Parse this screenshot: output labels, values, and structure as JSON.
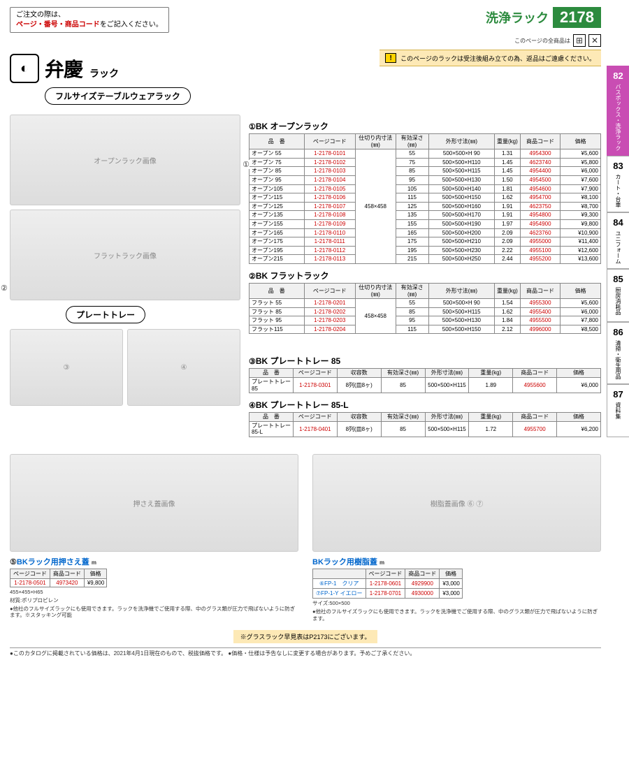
{
  "header": {
    "order_note_l1": "ご注文の際は、",
    "order_note_hl": "ページ・番号・商品コード",
    "order_note_l2": "をご記入ください。",
    "category_title": "洗浄ラック",
    "page_number": "2178",
    "sub_note": "このページの全商品は",
    "brand_text": "弁慶",
    "brand_sub": "ラック",
    "subtitle": "フルサイズテーブルウェアラック",
    "notice_text": "このページのラックは受注後組み立ての為、返品はご遠慮ください。"
  },
  "side_tabs": [
    {
      "num": "82",
      "label": "バスボックス・洗浄ラック",
      "active": true
    },
    {
      "num": "83",
      "label": "カート・台車",
      "active": false
    },
    {
      "num": "84",
      "label": "ユニフォーム",
      "active": false
    },
    {
      "num": "85",
      "label": "厨房消耗品",
      "active": false
    },
    {
      "num": "86",
      "label": "清掃・衛生用品",
      "active": false
    },
    {
      "num": "87",
      "label": "資料集",
      "active": false
    }
  ],
  "tables": {
    "t1": {
      "title_num": "①",
      "title": "BK オープンラック",
      "headers": [
        "品　番",
        "ページコード",
        "仕切り内寸法(㎜)",
        "有効深さ(㎜)",
        "外形寸法(㎜)",
        "重量(kg)",
        "商品コード",
        "価格"
      ],
      "inner": "458×458",
      "rows": [
        [
          "オープン 55",
          "1-2178-0101",
          "55",
          "500×500×H 90",
          "1.31",
          "4954300",
          "¥5,600"
        ],
        [
          "オープン 75",
          "1-2178-0102",
          "75",
          "500×500×H110",
          "1.45",
          "4623740",
          "¥5,800"
        ],
        [
          "オープン 85",
          "1-2178-0103",
          "85",
          "500×500×H115",
          "1.45",
          "4954400",
          "¥6,000"
        ],
        [
          "オープン 95",
          "1-2178-0104",
          "95",
          "500×500×H130",
          "1.50",
          "4954500",
          "¥7,600"
        ],
        [
          "オープン105",
          "1-2178-0105",
          "105",
          "500×500×H140",
          "1.81",
          "4954600",
          "¥7,900"
        ],
        [
          "オープン115",
          "1-2178-0106",
          "115",
          "500×500×H150",
          "1.62",
          "4954700",
          "¥8,100"
        ],
        [
          "オープン125",
          "1-2178-0107",
          "125",
          "500×500×H160",
          "1.91",
          "4623750",
          "¥8,700"
        ],
        [
          "オープン135",
          "1-2178-0108",
          "135",
          "500×500×H170",
          "1.91",
          "4954800",
          "¥9,300"
        ],
        [
          "オープン155",
          "1-2178-0109",
          "155",
          "500×500×H190",
          "1.97",
          "4954900",
          "¥9,800"
        ],
        [
          "オープン165",
          "1-2178-0110",
          "165",
          "500×500×H200",
          "2.09",
          "4623760",
          "¥10,900"
        ],
        [
          "オープン175",
          "1-2178-0111",
          "175",
          "500×500×H210",
          "2.09",
          "4955000",
          "¥11,400"
        ],
        [
          "オープン195",
          "1-2178-0112",
          "195",
          "500×500×H230",
          "2.22",
          "4955100",
          "¥12,600"
        ],
        [
          "オープン215",
          "1-2178-0113",
          "215",
          "500×500×H250",
          "2.44",
          "4955200",
          "¥13,600"
        ]
      ]
    },
    "t2": {
      "title_num": "②",
      "title": "BK フラットラック",
      "headers": [
        "品　番",
        "ページコード",
        "仕切り内寸法(㎜)",
        "有効深さ(㎜)",
        "外形寸法(㎜)",
        "重量(kg)",
        "商品コード",
        "価格"
      ],
      "inner": "458×458",
      "rows": [
        [
          "フラット 55",
          "1-2178-0201",
          "55",
          "500×500×H 90",
          "1.54",
          "4955300",
          "¥5,600"
        ],
        [
          "フラット 85",
          "1-2178-0202",
          "85",
          "500×500×H115",
          "1.62",
          "4955400",
          "¥6,000"
        ],
        [
          "フラット 95",
          "1-2178-0203",
          "95",
          "500×500×H130",
          "1.84",
          "4955500",
          "¥7,800"
        ],
        [
          "フラット115",
          "1-2178-0204",
          "115",
          "500×500×H150",
          "2.12",
          "4996000",
          "¥8,500"
        ]
      ]
    },
    "t3": {
      "title_num": "③",
      "title": "BK プレートトレー 85",
      "headers": [
        "品　番",
        "ページコード",
        "収容数",
        "有効深さ(㎜)",
        "外形寸法(㎜)",
        "重量(kg)",
        "商品コード",
        "価格"
      ],
      "rows": [
        [
          "プレートトレー 85",
          "1-2178-0301",
          "8列(皿8ヶ)",
          "85",
          "500×500×H115",
          "1.89",
          "4955600",
          "¥6,000"
        ]
      ]
    },
    "t4": {
      "title_num": "④",
      "title": "BK プレートトレー 85-L",
      "headers": [
        "品　番",
        "ページコード",
        "収容数",
        "有効深さ(㎜)",
        "外形寸法(㎜)",
        "重量(kg)",
        "商品コード",
        "価格"
      ],
      "rows": [
        [
          "プレートトレー 85-L",
          "1-2178-0401",
          "8列(皿8ヶ)",
          "85",
          "500×500×H115",
          "1.72",
          "4955700",
          "¥6,200"
        ]
      ]
    }
  },
  "plate_tray_label": "プレートトレー",
  "item5": {
    "title_num": "⑤",
    "title": "BKラック用押さえ蓋",
    "headers": [
      "ページコード",
      "商品コード",
      "価格"
    ],
    "row": [
      "1-2178-0501",
      "4973420",
      "¥9,800"
    ],
    "dims": "455×455×H65",
    "material": "材質:ポリプロピレン",
    "note": "●他社のフルサイズラックにも使用できます。ラックを洗浄機でご使用する際、中のグラス類が圧力で飛ばないように防ぎます。※スタッキング可能"
  },
  "item67": {
    "title": "BKラック用樹脂蓋",
    "headers": [
      "",
      "ページコード",
      "商品コード",
      "価格"
    ],
    "rows": [
      [
        "⑥FP-1　クリア",
        "1-2178-0601",
        "4929900",
        "¥3,000"
      ],
      [
        "⑦FP-1-Y イエロー",
        "1-2178-0701",
        "4930000",
        "¥3,000"
      ]
    ],
    "dims": "サイズ:500×500",
    "note": "●他社のフルサイズラックにも使用できます。ラックを洗浄機でご使用する際、中のグラス類が圧力で飛ばないように防ぎます。"
  },
  "foot_tag": "※グラスラック早見表はP2173にございます。",
  "disclaimer": "●このカタログに掲載されている価格は、2021年4月1日現在のもので、税抜価格です。 ●価格・仕様は予告なしに変更する場合があります。予めご了承ください。"
}
